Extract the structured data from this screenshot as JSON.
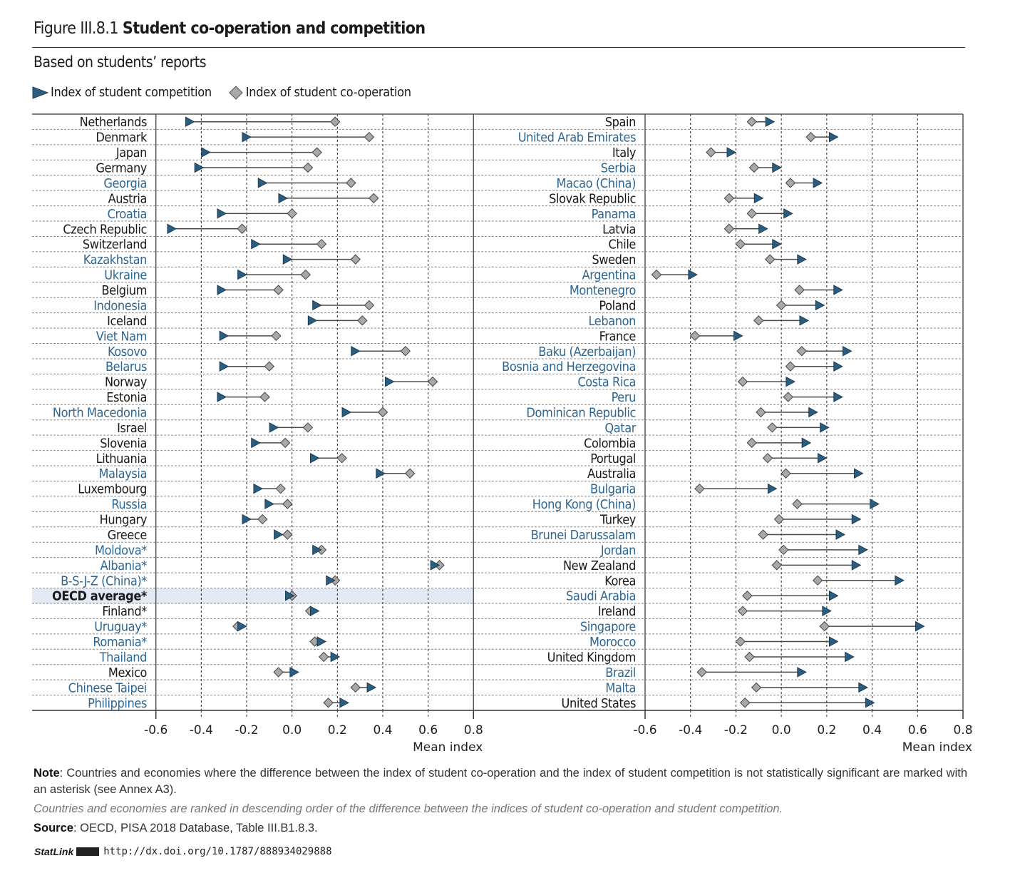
{
  "figure": {
    "number": "Figure III.8.1",
    "title": "Student co-operation and competition",
    "subtitle": "Based on students’ reports"
  },
  "colors": {
    "competition": "#2a5d80",
    "cooperation": "#a8a8a8",
    "label_blue": "#2f6690",
    "label_black": "#1a1a1a",
    "highlight": "#e1eaf5"
  },
  "legend": {
    "competition_label": "Index of student competition",
    "cooperation_label": "Index of student co-operation",
    "competition_icon": "triangle-right-icon",
    "cooperation_icon": "diamond-icon"
  },
  "notes": {
    "note_label": "Note",
    "note_text": ": Countries and economies where the difference between the index of student co-operation and the index of student competition is not statistically significant are marked with an asterisk (see Annex A3).",
    "ranked_text": "Countries and economies are ranked in descending order of the difference between the indices of student co-operation and student competition.",
    "source_label": "Source",
    "source_text": ": OECD, PISA 2018 Database, Table III.B1.8.3.",
    "statlink_label": "StatLink",
    "statlink_url": "http://dx.doi.org/10.1787/888934029888"
  },
  "chart_data": {
    "type": "dot-range",
    "title": "Student co-operation and competition",
    "subtitle": "Based on students’ reports",
    "xlabel": "Mean index",
    "xlim": [
      -0.6,
      0.8
    ],
    "xticks": [
      "-0.6",
      "-0.4",
      "-0.2",
      "0.0",
      "0.2",
      "0.4",
      "0.6",
      "0.8"
    ],
    "grid": true,
    "legend_position": "top-left",
    "series": [
      "Index of student competition",
      "Index of student co-operation"
    ],
    "panels": [
      {
        "rows": [
          {
            "country": "Netherlands",
            "competition": -0.45,
            "cooperation": 0.19,
            "partner": false
          },
          {
            "country": "Denmark",
            "competition": -0.2,
            "cooperation": 0.34,
            "partner": false
          },
          {
            "country": "Japan",
            "competition": -0.38,
            "cooperation": 0.11,
            "partner": false
          },
          {
            "country": "Germany",
            "competition": -0.41,
            "cooperation": 0.07,
            "partner": false
          },
          {
            "country": "Georgia",
            "competition": -0.13,
            "cooperation": 0.26,
            "partner": true
          },
          {
            "country": "Austria",
            "competition": -0.04,
            "cooperation": 0.36,
            "partner": false
          },
          {
            "country": "Croatia",
            "competition": -0.31,
            "cooperation": 0.0,
            "partner": true
          },
          {
            "country": "Czech Republic",
            "competition": -0.53,
            "cooperation": -0.22,
            "partner": false
          },
          {
            "country": "Switzerland",
            "competition": -0.16,
            "cooperation": 0.13,
            "partner": false
          },
          {
            "country": "Kazakhstan",
            "competition": -0.02,
            "cooperation": 0.28,
            "partner": true
          },
          {
            "country": "Ukraine",
            "competition": -0.22,
            "cooperation": 0.06,
            "partner": true
          },
          {
            "country": "Belgium",
            "competition": -0.31,
            "cooperation": -0.06,
            "partner": false
          },
          {
            "country": "Indonesia",
            "competition": 0.11,
            "cooperation": 0.34,
            "partner": true
          },
          {
            "country": "Iceland",
            "competition": 0.09,
            "cooperation": 0.31,
            "partner": false
          },
          {
            "country": "Viet Nam",
            "competition": -0.3,
            "cooperation": -0.07,
            "partner": true
          },
          {
            "country": "Kosovo",
            "competition": 0.28,
            "cooperation": 0.5,
            "partner": true
          },
          {
            "country": "Belarus",
            "competition": -0.3,
            "cooperation": -0.1,
            "partner": true
          },
          {
            "country": "Norway",
            "competition": 0.43,
            "cooperation": 0.62,
            "partner": false
          },
          {
            "country": "Estonia",
            "competition": -0.31,
            "cooperation": -0.12,
            "partner": false
          },
          {
            "country": "North Macedonia",
            "competition": 0.24,
            "cooperation": 0.4,
            "partner": true
          },
          {
            "country": "Israel",
            "competition": -0.08,
            "cooperation": 0.07,
            "partner": false
          },
          {
            "country": "Slovenia",
            "competition": -0.16,
            "cooperation": -0.03,
            "partner": false
          },
          {
            "country": "Lithuania",
            "competition": 0.1,
            "cooperation": 0.22,
            "partner": false
          },
          {
            "country": "Malaysia",
            "competition": 0.39,
            "cooperation": 0.52,
            "partner": true
          },
          {
            "country": "Luxembourg",
            "competition": -0.15,
            "cooperation": -0.05,
            "partner": false
          },
          {
            "country": "Russia",
            "competition": -0.1,
            "cooperation": -0.02,
            "partner": true
          },
          {
            "country": "Hungary",
            "competition": -0.2,
            "cooperation": -0.13,
            "partner": false
          },
          {
            "country": "Greece",
            "competition": -0.06,
            "cooperation": -0.02,
            "partner": false
          },
          {
            "country": "Moldova*",
            "competition": 0.11,
            "cooperation": 0.13,
            "partner": true
          },
          {
            "country": "Albania*",
            "competition": 0.63,
            "cooperation": 0.65,
            "partner": true
          },
          {
            "country": "B-S-J-Z (China)*",
            "competition": 0.17,
            "cooperation": 0.19,
            "partner": true
          },
          {
            "country": "OECD average*",
            "competition": -0.01,
            "cooperation": 0.0,
            "partner": false,
            "highlight": true
          },
          {
            "country": "Finland*",
            "competition": 0.1,
            "cooperation": 0.08,
            "partner": false
          },
          {
            "country": "Uruguay*",
            "competition": -0.22,
            "cooperation": -0.24,
            "partner": true
          },
          {
            "country": "Romania*",
            "competition": 0.13,
            "cooperation": 0.1,
            "partner": true
          },
          {
            "country": "Thailand",
            "competition": 0.19,
            "cooperation": 0.14,
            "partner": true
          },
          {
            "country": "Mexico",
            "competition": 0.01,
            "cooperation": -0.06,
            "partner": false
          },
          {
            "country": "Chinese Taipei",
            "competition": 0.35,
            "cooperation": 0.28,
            "partner": true
          },
          {
            "country": "Philippines",
            "competition": 0.23,
            "cooperation": 0.16,
            "partner": true
          }
        ]
      },
      {
        "rows": [
          {
            "country": "Spain",
            "competition": -0.05,
            "cooperation": -0.13,
            "partner": false
          },
          {
            "country": "United Arab Emirates",
            "competition": 0.23,
            "cooperation": 0.13,
            "partner": true
          },
          {
            "country": "Italy",
            "competition": -0.22,
            "cooperation": -0.31,
            "partner": false
          },
          {
            "country": "Serbia",
            "competition": -0.02,
            "cooperation": -0.12,
            "partner": true
          },
          {
            "country": "Macao (China)",
            "competition": 0.16,
            "cooperation": 0.04,
            "partner": true
          },
          {
            "country": "Slovak Republic",
            "competition": -0.1,
            "cooperation": -0.23,
            "partner": false
          },
          {
            "country": "Panama",
            "competition": 0.03,
            "cooperation": -0.13,
            "partner": true
          },
          {
            "country": "Latvia",
            "competition": -0.08,
            "cooperation": -0.23,
            "partner": false
          },
          {
            "country": "Chile",
            "competition": -0.02,
            "cooperation": -0.18,
            "partner": false
          },
          {
            "country": "Sweden",
            "competition": 0.09,
            "cooperation": -0.05,
            "partner": false
          },
          {
            "country": "Argentina",
            "competition": -0.39,
            "cooperation": -0.55,
            "partner": true
          },
          {
            "country": "Montenegro",
            "competition": 0.25,
            "cooperation": 0.08,
            "partner": true
          },
          {
            "country": "Poland",
            "competition": 0.17,
            "cooperation": 0.0,
            "partner": false
          },
          {
            "country": "Lebanon",
            "competition": 0.1,
            "cooperation": -0.1,
            "partner": true
          },
          {
            "country": "France",
            "competition": -0.19,
            "cooperation": -0.38,
            "partner": false
          },
          {
            "country": "Baku (Azerbaijan)",
            "competition": 0.29,
            "cooperation": 0.09,
            "partner": true
          },
          {
            "country": "Bosnia and Herzegovina",
            "competition": 0.25,
            "cooperation": 0.04,
            "partner": true
          },
          {
            "country": "Costa Rica",
            "competition": 0.04,
            "cooperation": -0.17,
            "partner": true
          },
          {
            "country": "Peru",
            "competition": 0.25,
            "cooperation": 0.03,
            "partner": true
          },
          {
            "country": "Dominican Republic",
            "competition": 0.14,
            "cooperation": -0.09,
            "partner": true
          },
          {
            "country": "Qatar",
            "competition": 0.19,
            "cooperation": -0.04,
            "partner": true
          },
          {
            "country": "Colombia",
            "competition": 0.11,
            "cooperation": -0.13,
            "partner": false
          },
          {
            "country": "Portugal",
            "competition": 0.18,
            "cooperation": -0.06,
            "partner": false
          },
          {
            "country": "Australia",
            "competition": 0.34,
            "cooperation": 0.02,
            "partner": false
          },
          {
            "country": "Bulgaria",
            "competition": -0.04,
            "cooperation": -0.36,
            "partner": true
          },
          {
            "country": "Hong Kong (China)",
            "competition": 0.41,
            "cooperation": 0.07,
            "partner": true
          },
          {
            "country": "Turkey",
            "competition": 0.33,
            "cooperation": -0.01,
            "partner": false
          },
          {
            "country": "Brunei Darussalam",
            "competition": 0.26,
            "cooperation": -0.08,
            "partner": true
          },
          {
            "country": "Jordan",
            "competition": 0.36,
            "cooperation": 0.01,
            "partner": true
          },
          {
            "country": "New Zealand",
            "competition": 0.33,
            "cooperation": -0.02,
            "partner": false
          },
          {
            "country": "Korea",
            "competition": 0.52,
            "cooperation": 0.16,
            "partner": false
          },
          {
            "country": "Saudi Arabia",
            "competition": 0.23,
            "cooperation": -0.15,
            "partner": true
          },
          {
            "country": "Ireland",
            "competition": 0.2,
            "cooperation": -0.17,
            "partner": false
          },
          {
            "country": "Singapore",
            "competition": 0.61,
            "cooperation": 0.19,
            "partner": true
          },
          {
            "country": "Morocco",
            "competition": 0.23,
            "cooperation": -0.18,
            "partner": true
          },
          {
            "country": "United Kingdom",
            "competition": 0.3,
            "cooperation": -0.14,
            "partner": false
          },
          {
            "country": "Brazil",
            "competition": 0.09,
            "cooperation": -0.35,
            "partner": true
          },
          {
            "country": "Malta",
            "competition": 0.36,
            "cooperation": -0.11,
            "partner": true
          },
          {
            "country": "United States",
            "competition": 0.39,
            "cooperation": -0.16,
            "partner": false
          }
        ]
      }
    ]
  }
}
